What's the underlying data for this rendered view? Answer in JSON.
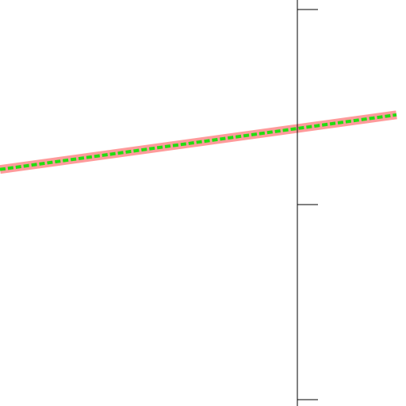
{
  "chart_data": {
    "type": "line",
    "title": "",
    "xlabel": "",
    "ylabel": "",
    "xlim": [
      -3.0,
      1.0
    ],
    "ylim": [
      -1.0,
      1.0
    ],
    "grid": false,
    "legend": "none",
    "y_axis_at_x": 0,
    "y_ticks": [
      1.0,
      0.0,
      -1.0
    ],
    "series": [
      {
        "x": [
          -3.0,
          1.0
        ],
        "y": [
          0.18,
          0.46
        ],
        "color": "#ff9b9b",
        "style": "solid-thick"
      },
      {
        "x": [
          -3.0,
          1.0
        ],
        "y": [
          0.18,
          0.46
        ],
        "color": "#22dd11",
        "style": "dashed"
      }
    ]
  }
}
